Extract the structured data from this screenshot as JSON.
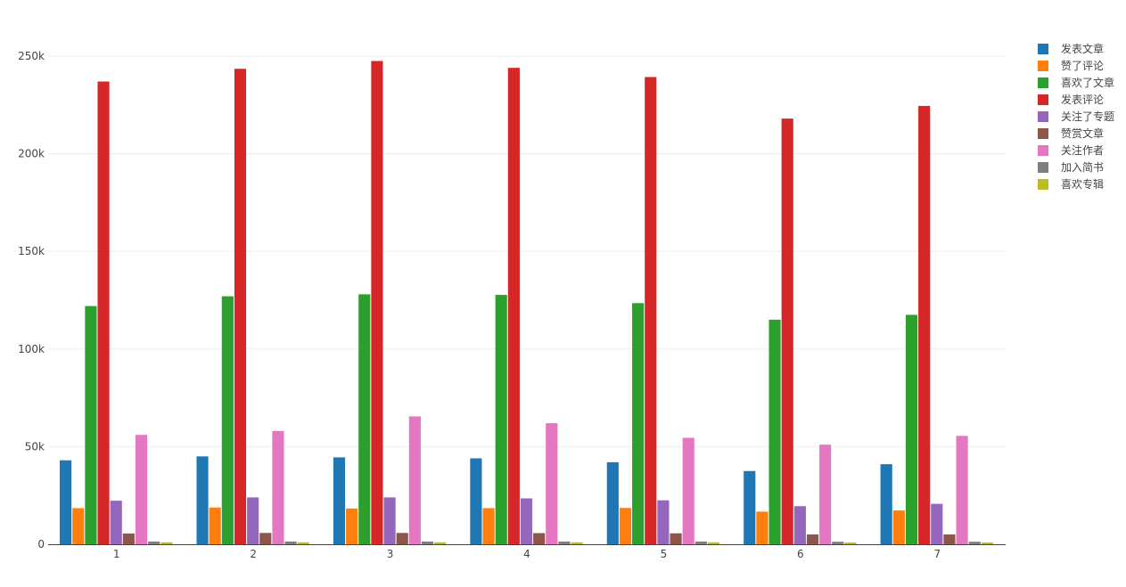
{
  "chart_data": {
    "type": "bar",
    "categories": [
      "1",
      "2",
      "3",
      "4",
      "5",
      "6",
      "7"
    ],
    "ylim": [
      0,
      250000
    ],
    "y_ticks": [
      {
        "value": 0,
        "label": "0"
      },
      {
        "value": 50000,
        "label": "50k"
      },
      {
        "value": 100000,
        "label": "100k"
      },
      {
        "value": 150000,
        "label": "150k"
      },
      {
        "value": 200000,
        "label": "200k"
      },
      {
        "value": 250000,
        "label": "250k"
      }
    ],
    "grid": true,
    "legend_position": "top-right",
    "series": [
      {
        "name": "发表文章",
        "color": "#1f77b4",
        "values": [
          43000,
          45000,
          44500,
          44000,
          42000,
          37500,
          41000
        ]
      },
      {
        "name": "赞了评论",
        "color": "#ff7f0e",
        "values": [
          18500,
          18800,
          18300,
          18500,
          18600,
          16700,
          17300
        ]
      },
      {
        "name": "喜欢了文章",
        "color": "#2ca02c",
        "values": [
          122000,
          127000,
          128000,
          127700,
          123500,
          115000,
          117500
        ]
      },
      {
        "name": "发表评论",
        "color": "#d62728",
        "values": [
          237000,
          243500,
          247500,
          244000,
          239300,
          218000,
          224500
        ]
      },
      {
        "name": "关注了专题",
        "color": "#9467bd",
        "values": [
          22300,
          24000,
          24000,
          23500,
          22500,
          19500,
          20700
        ]
      },
      {
        "name": "赞赏文章",
        "color": "#8c564b",
        "values": [
          5500,
          5800,
          5800,
          5700,
          5600,
          5000,
          5000
        ]
      },
      {
        "name": "关注作者",
        "color": "#e377c2",
        "values": [
          56000,
          58000,
          65500,
          62000,
          54500,
          51000,
          55500
        ]
      },
      {
        "name": "加入简书",
        "color": "#7f7f7f",
        "values": [
          1400,
          1400,
          1400,
          1400,
          1400,
          1300,
          1300
        ]
      },
      {
        "name": "喜欢专辑",
        "color": "#bcbd22",
        "values": [
          1000,
          1000,
          1000,
          1000,
          1000,
          900,
          900
        ]
      }
    ]
  }
}
